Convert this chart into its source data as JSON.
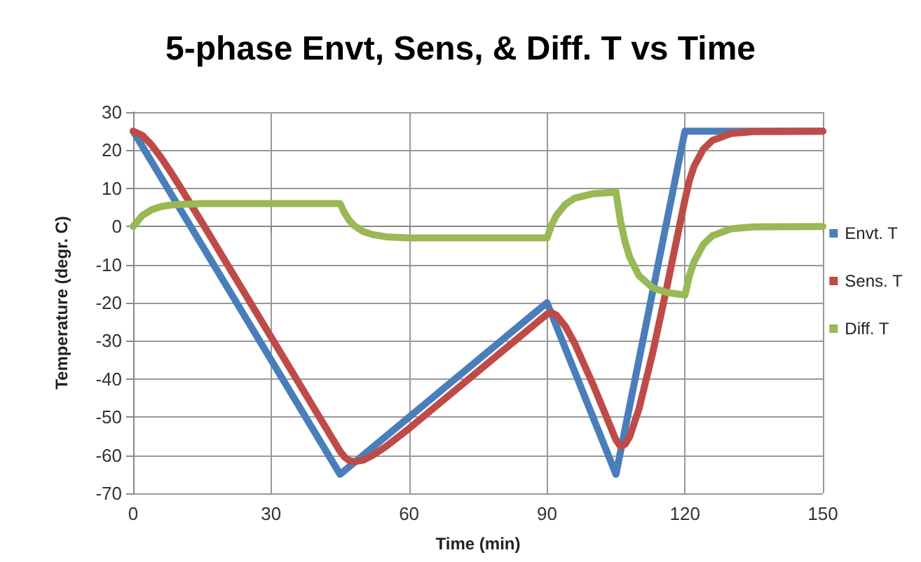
{
  "chart_data": {
    "type": "line",
    "title": "5-phase Envt, Sens, & Diff. T vs Time",
    "xlabel": "Time (min)",
    "ylabel": "Temperature (degr. C)",
    "xlim": [
      0,
      150
    ],
    "xticks": [
      0,
      30,
      60,
      90,
      120,
      150
    ],
    "ylim": [
      -70,
      30
    ],
    "yticks": [
      -70,
      -60,
      -50,
      -40,
      -30,
      -20,
      -10,
      0,
      10,
      20,
      30
    ],
    "grid": true,
    "legend": "right",
    "marker": "none",
    "line_style": "solid",
    "series": [
      {
        "name": "Envt. T",
        "color": "#4a7ebb",
        "x": [
          0,
          45,
          90,
          105,
          120,
          150
        ],
        "values": [
          25,
          -65,
          -20,
          -65,
          25,
          25
        ]
      },
      {
        "name": "Sens. T",
        "color": "#be4b48",
        "x": [
          0,
          2,
          4,
          6,
          8,
          10,
          15,
          45,
          46,
          47,
          48,
          50,
          52,
          55,
          60,
          90,
          91,
          92,
          94,
          96,
          100,
          105,
          106,
          107,
          108,
          110,
          113,
          116,
          120,
          121,
          122,
          124,
          126,
          130,
          135,
          150
        ],
        "values": [
          25,
          23.9,
          21.4,
          18.2,
          14.6,
          10.8,
          1,
          -59,
          -60.5,
          -61.4,
          -61.7,
          -61.3,
          -60.1,
          -57.7,
          -53,
          -23,
          -22.6,
          -23.2,
          -26.2,
          -30.6,
          -41.4,
          -56,
          -57.7,
          -57.1,
          -55.1,
          -47.9,
          -33.1,
          -16.3,
          7,
          12.2,
          15.8,
          20.3,
          22.6,
          24.4,
          24.9,
          25
        ]
      },
      {
        "name": "Diff. T",
        "color": "#98b954",
        "x": [
          0,
          2,
          4,
          6,
          8,
          10,
          15,
          45,
          46,
          47,
          48,
          50,
          52,
          55,
          60,
          90,
          91,
          92,
          94,
          96,
          100,
          105,
          106,
          107,
          108,
          110,
          113,
          116,
          120,
          121,
          122,
          124,
          126,
          130,
          135,
          150
        ],
        "values": [
          0,
          2.9,
          4.4,
          5.2,
          5.6,
          5.8,
          6,
          6,
          3.5,
          1.6,
          0.3,
          -1.3,
          -2.1,
          -2.7,
          -3,
          -3,
          0.4,
          2.8,
          5.8,
          7.4,
          8.6,
          9,
          1.3,
          -4.1,
          -8.1,
          -12.9,
          -16.1,
          -17.3,
          -18,
          -12.8,
          -9.2,
          -4.7,
          -2.4,
          -0.6,
          -0.1,
          0
        ]
      }
    ]
  }
}
